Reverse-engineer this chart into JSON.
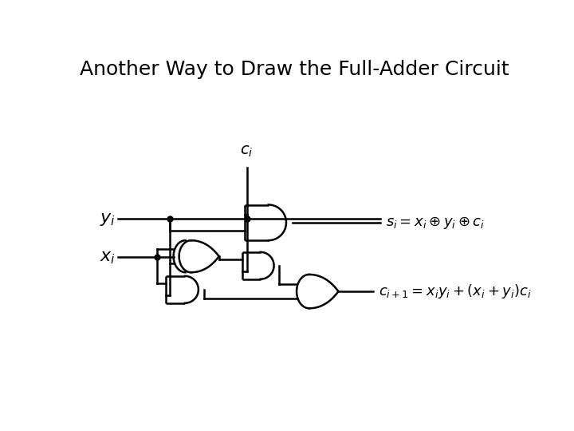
{
  "title": "Another Way to Draw the Full-Adder Circuit",
  "title_fontsize": 18,
  "title_fontweight": "normal",
  "bg_color": "#ffffff",
  "line_color": "#000000",
  "lw": 1.8,
  "label_yi": "$y_i$",
  "label_xi": "$x_i$",
  "label_ci": "$c_i$",
  "label_si": "$s_i = x_i \\oplus y_i \\oplus c_i$",
  "label_cout": "$c_{i+1} = x_i y_i + (x_i + y_i)c_i$",
  "si_fontsize": 13,
  "cout_fontsize": 13,
  "input_fontsize": 16
}
